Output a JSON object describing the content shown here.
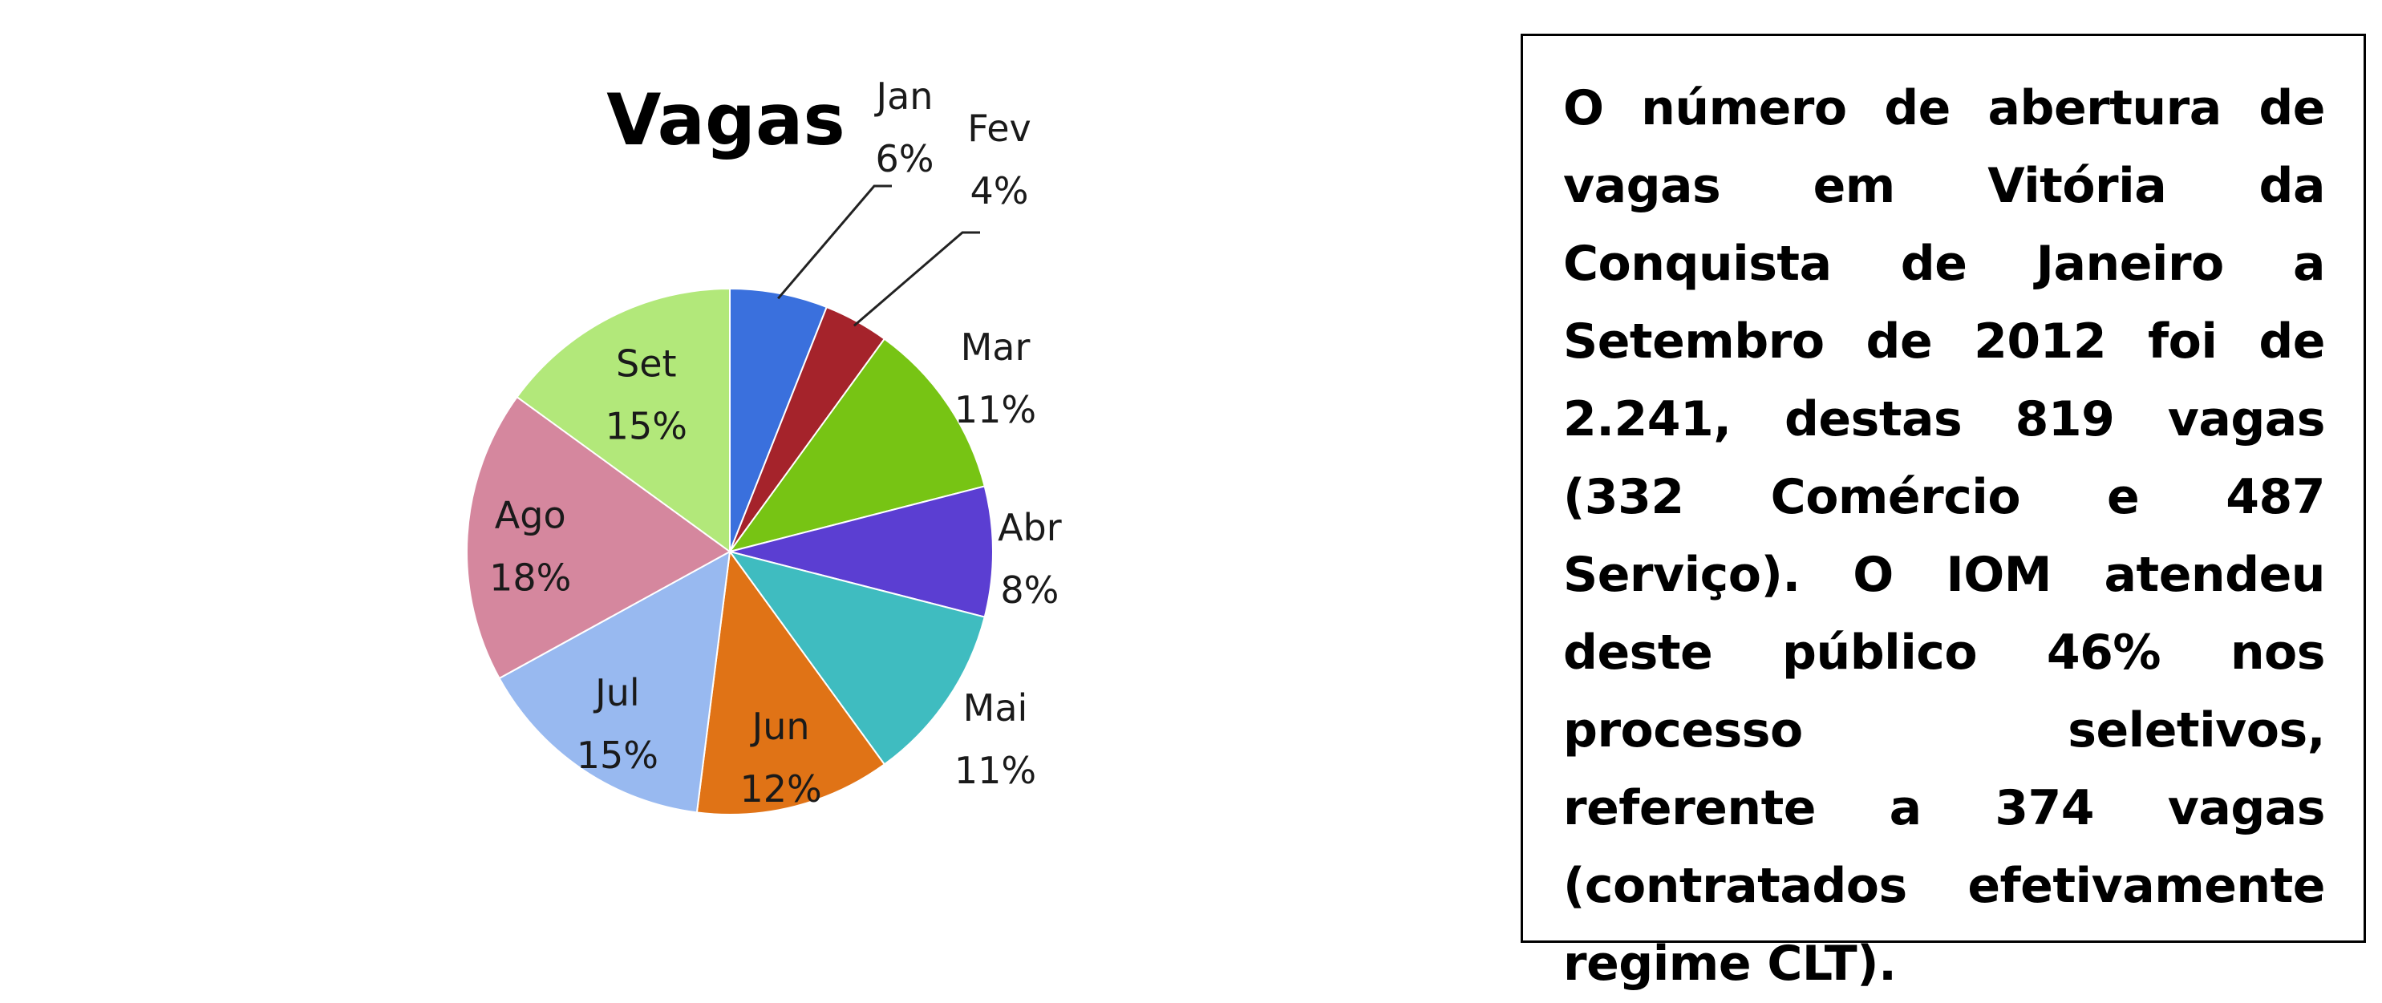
{
  "chart_data": {
    "type": "pie",
    "title": "Vagas",
    "categories": [
      "Jan",
      "Fev",
      "Mar",
      "Abr",
      "Mai",
      "Jun",
      "Jul",
      "Ago",
      "Set"
    ],
    "values": [
      6,
      4,
      11,
      8,
      11,
      12,
      15,
      18,
      15
    ],
    "labels": [
      "6%",
      "4%",
      "11%",
      "8%",
      "11%",
      "12%",
      "15%",
      "18%",
      "15%"
    ],
    "unit": "%",
    "start_angle": "12 o'clock",
    "direction": "clockwise",
    "legend": "none (data labels on slices)",
    "colors": [
      "#3a70dd",
      "#a5232b",
      "#77c414",
      "#5b3ed2",
      "#3fbcc0",
      "#e07316",
      "#98b9f0",
      "#d5879e",
      "#b2e87a"
    ]
  },
  "text_box": {
    "text": "O número de abertura de vagas em Vitória da Conquista de Janeiro a Setembro de 2012 foi de 2.241, destas 819 vagas (332 Comércio e 487 Serviço). O IOM atendeu deste público 46% nos processo seletivos, referente a 374 vagas (contratados efetivamente regime CLT)."
  }
}
